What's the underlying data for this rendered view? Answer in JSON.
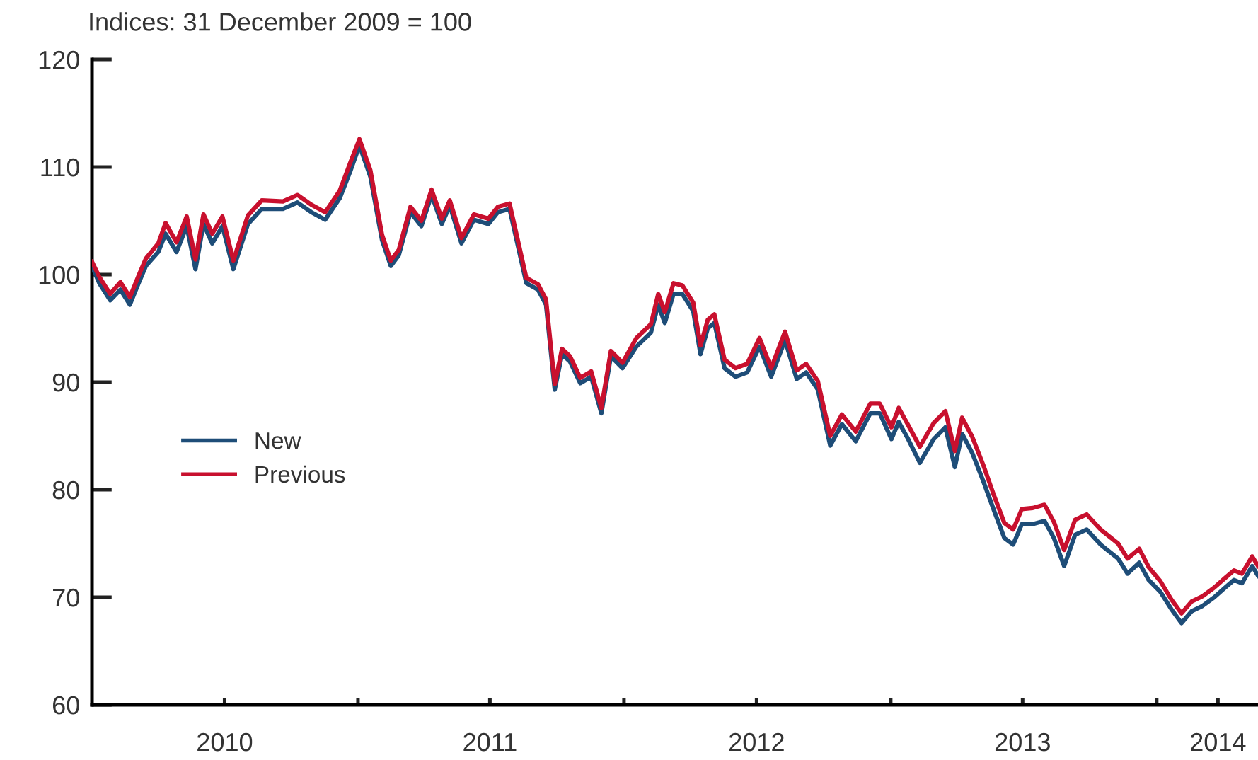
{
  "chart_data": {
    "type": "line",
    "ylabel": "Indices: 31 December 2009 = 100",
    "x": [
      "2010-01-01",
      "2010-01-11",
      "2010-01-26",
      "2010-02-09",
      "2010-02-22",
      "2010-03-06",
      "2010-03-16",
      "2010-04-02",
      "2010-04-12",
      "2010-04-27",
      "2010-05-11",
      "2010-05-23",
      "2010-06-03",
      "2010-06-15",
      "2010-06-29",
      "2010-07-14",
      "2010-08-03",
      "2010-08-22",
      "2010-09-20",
      "2010-10-10",
      "2010-10-29",
      "2010-11-17",
      "2010-12-07",
      "2010-12-22",
      "2011-01-03",
      "2011-01-18",
      "2011-02-03",
      "2011-02-15",
      "2011-02-26",
      "2011-03-14",
      "2011-03-29",
      "2011-04-12",
      "2011-04-26",
      "2011-05-07",
      "2011-05-23",
      "2011-06-09",
      "2011-06-29",
      "2011-07-12",
      "2011-07-28",
      "2011-08-06",
      "2011-08-20",
      "2011-09-05",
      "2011-09-16",
      "2011-09-28",
      "2011-10-08",
      "2011-10-19",
      "2011-11-02",
      "2011-11-17",
      "2011-12-01",
      "2011-12-14",
      "2011-12-30",
      "2012-01-18",
      "2012-02-07",
      "2012-02-17",
      "2012-02-26",
      "2012-03-09",
      "2012-03-21",
      "2012-04-05",
      "2012-04-15",
      "2012-04-25",
      "2012-05-04",
      "2012-05-18",
      "2012-06-02",
      "2012-06-18",
      "2012-07-05",
      "2012-07-21",
      "2012-08-09",
      "2012-08-25",
      "2012-09-07",
      "2012-09-23",
      "2012-10-10",
      "2012-10-26",
      "2012-11-14",
      "2012-12-04",
      "2012-12-17",
      "2013-01-02",
      "2013-01-12",
      "2013-01-25",
      "2013-02-10",
      "2013-03-01",
      "2013-03-17",
      "2013-03-30",
      "2013-04-09",
      "2013-04-23",
      "2013-05-08",
      "2013-05-22",
      "2013-06-06",
      "2013-06-18",
      "2013-06-30",
      "2013-07-15",
      "2013-07-31",
      "2013-08-13",
      "2013-08-27",
      "2013-09-11",
      "2013-09-27",
      "2013-10-16",
      "2013-11-09",
      "2013-11-22",
      "2013-12-08",
      "2013-12-21",
      "2014-01-06",
      "2014-01-21",
      "2014-02-04",
      "2014-02-18",
      "2014-03-05",
      "2014-03-21",
      "2014-04-05",
      "2014-04-17",
      "2014-04-28",
      "2014-05-12",
      "2014-05-20"
    ],
    "series": [
      {
        "name": "New",
        "color": "#1e4d78",
        "values": [
          100.8,
          99.2,
          97.6,
          98.6,
          97.2,
          99.2,
          100.8,
          102.1,
          103.8,
          102.1,
          104.5,
          100.5,
          104.7,
          102.9,
          104.5,
          100.5,
          104.7,
          106.1,
          106.1,
          106.7,
          105.8,
          105.1,
          107.1,
          109.7,
          112.0,
          109.1,
          103.2,
          100.8,
          101.8,
          105.8,
          104.5,
          107.4,
          104.7,
          106.4,
          102.9,
          105.1,
          104.7,
          105.8,
          106.1,
          103.4,
          99.2,
          98.6,
          97.2,
          89.3,
          92.6,
          91.9,
          89.9,
          90.5,
          87.1,
          92.4,
          91.3,
          93.3,
          94.6,
          97.2,
          95.5,
          98.2,
          98.2,
          96.6,
          92.6,
          95.0,
          95.5,
          91.3,
          90.5,
          90.9,
          93.3,
          90.5,
          93.9,
          90.3,
          90.9,
          89.3,
          84.1,
          86.1,
          84.5,
          87.1,
          87.1,
          84.7,
          86.3,
          84.7,
          82.5,
          84.7,
          85.8,
          82.1,
          85.2,
          83.4,
          80.8,
          78.2,
          75.5,
          74.9,
          76.8,
          76.8,
          77.1,
          75.5,
          72.9,
          75.8,
          76.3,
          74.9,
          73.6,
          72.2,
          73.2,
          71.6,
          70.5,
          68.9,
          67.6,
          68.7,
          69.2,
          70.0,
          70.9,
          71.6,
          71.3,
          72.9,
          72.0
        ]
      },
      {
        "name": "Previous",
        "color": "#c8102e",
        "values": [
          101.2,
          99.8,
          98.2,
          99.3,
          97.9,
          99.9,
          101.5,
          102.9,
          104.8,
          103.0,
          105.4,
          101.4,
          105.6,
          103.8,
          105.4,
          101.3,
          105.5,
          106.9,
          106.8,
          107.4,
          106.5,
          105.8,
          107.8,
          110.5,
          112.6,
          109.7,
          103.7,
          101.3,
          102.3,
          106.3,
          105.0,
          107.9,
          105.2,
          106.9,
          103.4,
          105.6,
          105.2,
          106.3,
          106.6,
          103.9,
          99.7,
          99.1,
          97.7,
          89.8,
          93.1,
          92.4,
          90.4,
          91.0,
          87.6,
          92.9,
          91.8,
          94.1,
          95.4,
          98.2,
          96.5,
          99.2,
          99.0,
          97.4,
          93.4,
          95.8,
          96.3,
          92.1,
          91.3,
          91.7,
          94.1,
          91.3,
          94.7,
          91.1,
          91.7,
          90.1,
          85.0,
          87.0,
          85.4,
          88.0,
          88.0,
          85.8,
          87.6,
          86.0,
          84.0,
          86.2,
          87.3,
          83.6,
          86.7,
          84.9,
          82.3,
          79.6,
          76.9,
          76.3,
          78.2,
          78.3,
          78.6,
          77.0,
          74.4,
          77.2,
          77.7,
          76.3,
          75.0,
          73.6,
          74.5,
          72.8,
          71.5,
          69.8,
          68.5,
          69.6,
          70.1,
          70.9,
          71.8,
          72.5,
          72.2,
          73.8,
          72.9
        ]
      }
    ],
    "xlim": [
      "2010-01-01",
      "2014-05-20"
    ],
    "xticks": [
      {
        "value": "2010-07-02",
        "label": "2010"
      },
      {
        "value": "2011-01-01",
        "label": null
      },
      {
        "value": "2011-07-01",
        "label": "2011"
      },
      {
        "value": "2012-01-01",
        "label": null
      },
      {
        "value": "2012-07-01",
        "label": "2012"
      },
      {
        "value": "2013-01-01",
        "label": null
      },
      {
        "value": "2013-07-01",
        "label": "2013"
      },
      {
        "value": "2014-01-01",
        "label": null
      },
      {
        "value": "2014-03-26",
        "label": "2014"
      }
    ],
    "ylim": [
      60,
      120
    ],
    "yticks": [
      60,
      70,
      80,
      90,
      100,
      110,
      120
    ],
    "legend": "center left"
  }
}
